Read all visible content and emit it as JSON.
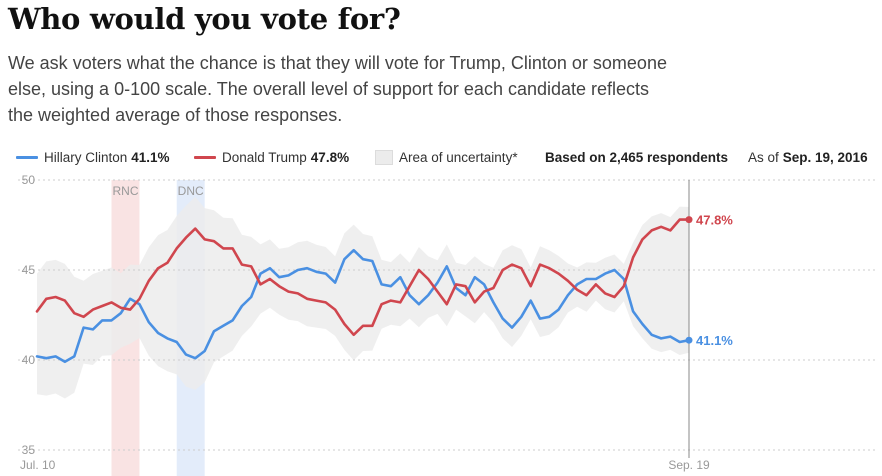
{
  "header": {
    "title": "Who would you vote for?",
    "description": "We ask voters what the chance is that they will vote for Trump, Clinton or someone else, using a 0-100 scale. The overall level of support for each candidate reflects the weighted average of those responses."
  },
  "legend": {
    "clinton_label": "Hillary Clinton",
    "clinton_value": "41.1%",
    "trump_label": "Donald Trump",
    "trump_value": "47.8%",
    "uncertainty_label": "Area of uncertainty*",
    "respondents_text": "Based on 2,465 respondents",
    "as_of_prefix": "As of",
    "as_of_date": "Sep. 19, 2016"
  },
  "colors": {
    "clinton": "#4a90e2",
    "trump": "#d0464e",
    "uncertainty": "#ececec",
    "rnc_band": "#f9e3e3",
    "dnc_band": "#e3ecfa",
    "grid": "#cccccc"
  },
  "chart_data": {
    "type": "line",
    "ylim": [
      35,
      50
    ],
    "y_ticks": [
      35,
      40,
      45,
      50
    ],
    "x_tick_labels": [
      "Jul. 10",
      "Sep. 19"
    ],
    "grid": true,
    "conventions": [
      {
        "label": "RNC",
        "start_day": 8,
        "end_day": 11,
        "party": "R"
      },
      {
        "label": "DNC",
        "start_day": 15,
        "end_day": 18,
        "party": "D"
      }
    ],
    "series": [
      {
        "name": "Hillary Clinton",
        "key": "clinton",
        "end_label": "41.1%",
        "values": [
          40.2,
          40.1,
          40.2,
          39.9,
          40.2,
          41.8,
          41.7,
          42.2,
          42.2,
          42.6,
          43.4,
          43.1,
          42.1,
          41.5,
          41.2,
          41.0,
          40.3,
          40.1,
          40.5,
          41.6,
          41.9,
          42.2,
          43.0,
          43.5,
          44.8,
          45.1,
          44.6,
          44.7,
          45.0,
          45.1,
          44.9,
          44.8,
          44.3,
          45.6,
          46.1,
          45.6,
          45.5,
          44.2,
          44.1,
          44.6,
          43.6,
          43.1,
          43.6,
          44.3,
          45.2,
          44.0,
          43.6,
          44.6,
          44.2,
          43.2,
          42.3,
          41.8,
          42.4,
          43.3,
          42.3,
          42.4,
          42.8,
          43.6,
          44.2,
          44.5,
          44.5,
          44.8,
          45.0,
          44.5,
          42.7,
          42.0,
          41.4,
          41.2,
          41.3,
          41.0,
          41.1
        ]
      },
      {
        "name": "Donald Trump",
        "key": "trump",
        "end_label": "47.8%",
        "values": [
          42.7,
          43.4,
          43.5,
          43.3,
          42.6,
          42.4,
          42.8,
          43.0,
          43.2,
          42.9,
          42.8,
          43.4,
          44.4,
          45.1,
          45.4,
          46.2,
          46.8,
          47.3,
          46.7,
          46.6,
          46.2,
          46.2,
          45.3,
          45.2,
          44.2,
          44.5,
          44.1,
          43.8,
          43.7,
          43.4,
          43.3,
          43.2,
          42.8,
          42.0,
          41.4,
          41.9,
          41.9,
          43.1,
          43.3,
          43.2,
          44.1,
          45.0,
          44.5,
          43.8,
          43.1,
          44.2,
          44.1,
          43.2,
          43.8,
          44.0,
          45.0,
          45.3,
          45.1,
          44.1,
          45.3,
          45.1,
          44.8,
          44.4,
          43.9,
          43.6,
          44.2,
          43.7,
          43.5,
          44.1,
          45.7,
          46.7,
          47.2,
          47.4,
          47.2,
          47.8,
          47.8
        ]
      }
    ]
  }
}
